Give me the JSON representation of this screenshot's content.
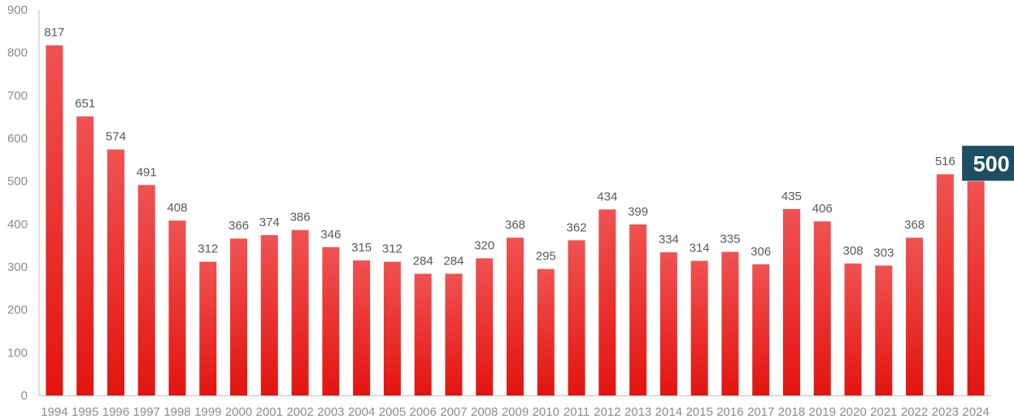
{
  "chart_data": {
    "type": "bar",
    "title": "",
    "xlabel": "",
    "ylabel": "",
    "ylim": [
      0,
      900
    ],
    "y_ticks": [
      0,
      100,
      200,
      300,
      400,
      500,
      600,
      700,
      800,
      900
    ],
    "grid": false,
    "categories": [
      "1994",
      "1995",
      "1996",
      "1997",
      "1998",
      "1999",
      "2000",
      "2001",
      "2002",
      "2003",
      "2004",
      "2005",
      "2006",
      "2007",
      "2008",
      "2009",
      "2010",
      "2011",
      "2012",
      "2013",
      "2014",
      "2015",
      "2016",
      "2017",
      "2018",
      "2019",
      "2020",
      "2021",
      "2022",
      "2023",
      "2024"
    ],
    "values": [
      817,
      651,
      574,
      491,
      408,
      312,
      366,
      374,
      386,
      346,
      315,
      312,
      284,
      284,
      320,
      368,
      295,
      362,
      434,
      399,
      334,
      314,
      335,
      306,
      435,
      406,
      308,
      303,
      368,
      516,
      500
    ],
    "highlight": {
      "category": "2024",
      "label": "500",
      "color": "#1d4e62"
    },
    "colors": {
      "bar_top": "#f05252",
      "bar_bottom": "#e3140f",
      "axis": "#bfbfbf",
      "tick_text": "#8c8c8c",
      "value_text": "#595959"
    }
  }
}
